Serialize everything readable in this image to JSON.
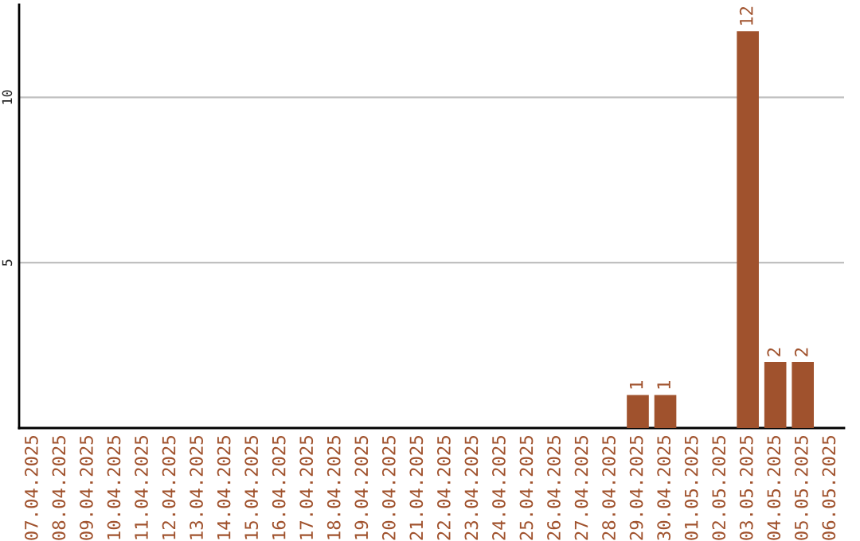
{
  "chart_data": {
    "type": "bar",
    "categories": [
      "07.04.2025",
      "08.04.2025",
      "09.04.2025",
      "10.04.2025",
      "11.04.2025",
      "12.04.2025",
      "13.04.2025",
      "14.04.2025",
      "15.04.2025",
      "16.04.2025",
      "17.04.2025",
      "18.04.2025",
      "19.04.2025",
      "20.04.2025",
      "21.04.2025",
      "22.04.2025",
      "23.04.2025",
      "24.04.2025",
      "25.04.2025",
      "26.04.2025",
      "27.04.2025",
      "28.04.2025",
      "29.04.2025",
      "30.04.2025",
      "01.05.2025",
      "02.05.2025",
      "03.05.2025",
      "04.05.2025",
      "05.05.2025",
      "06.05.2025"
    ],
    "values": [
      0,
      0,
      0,
      0,
      0,
      0,
      0,
      0,
      0,
      0,
      0,
      0,
      0,
      0,
      0,
      0,
      0,
      0,
      0,
      0,
      0,
      0,
      1,
      1,
      0,
      0,
      12,
      2,
      2,
      0
    ],
    "value_labels": [
      null,
      null,
      null,
      null,
      null,
      null,
      null,
      null,
      null,
      null,
      null,
      null,
      null,
      null,
      null,
      null,
      null,
      null,
      null,
      null,
      null,
      null,
      "1",
      "1",
      null,
      null,
      "12",
      "2",
      "2",
      null
    ],
    "color": "#a0522d",
    "ylim": [
      0,
      12.8
    ],
    "yticks": [
      5,
      10
    ],
    "grid": "y"
  }
}
